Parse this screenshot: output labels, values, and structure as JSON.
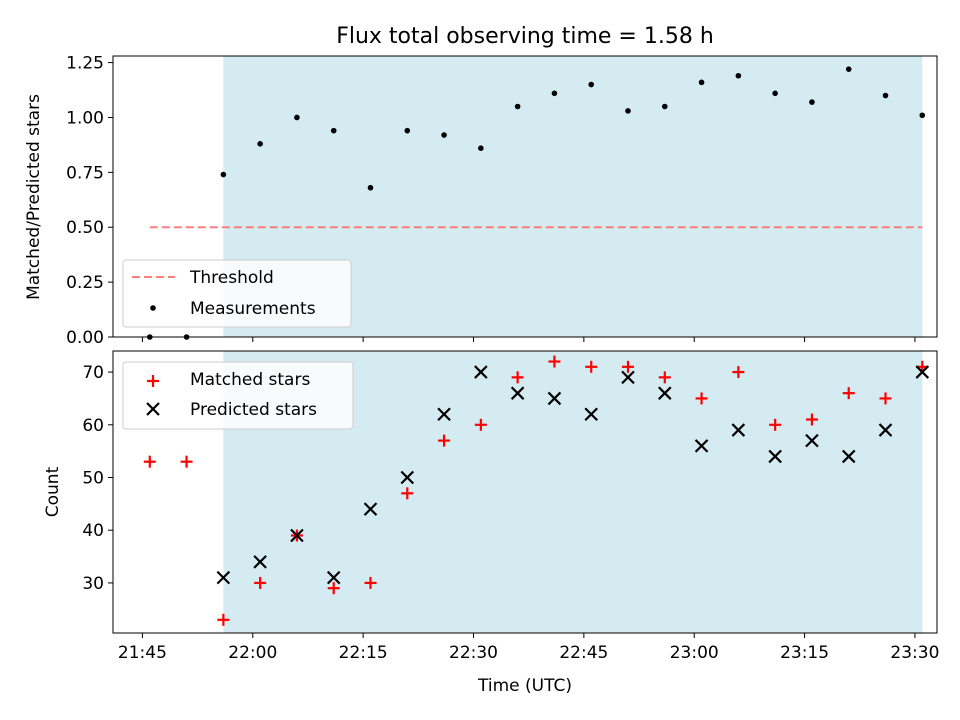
{
  "title": "Flux total observing time = 1.58 h",
  "colors": {
    "shade": "#d4ebf1",
    "threshold": "#ff7f7f",
    "measure": "#000000",
    "matched": "#ff0000",
    "predicted": "#000000"
  },
  "chart_data": [
    {
      "type": "scatter",
      "title": "Flux total observing time = 1.58 h",
      "xlabel": "",
      "ylabel": "Matched/Predicted stars",
      "xlim": [
        "21:41",
        "23:33"
      ],
      "ylim": [
        0,
        1.28
      ],
      "yticks": [
        "0.00",
        "0.25",
        "0.50",
        "0.75",
        "1.00",
        "1.25"
      ],
      "shaded_span": [
        "21:56",
        "23:31"
      ],
      "legend": "lower-left",
      "threshold": {
        "name": "Threshold",
        "y": 0.5,
        "x_range": [
          "21:46",
          "23:31"
        ]
      },
      "series": [
        {
          "name": "Measurements",
          "x": [
            "21:46",
            "21:51",
            "21:56",
            "22:01",
            "22:06",
            "22:11",
            "22:16",
            "22:21",
            "22:26",
            "22:31",
            "22:36",
            "22:41",
            "22:46",
            "22:51",
            "22:56",
            "23:01",
            "23:06",
            "23:11",
            "23:16",
            "23:21",
            "23:26",
            "23:31"
          ],
          "y": [
            0.0,
            0.0,
            0.74,
            0.88,
            1.0,
            0.94,
            0.68,
            0.94,
            0.92,
            0.86,
            1.05,
            1.11,
            1.15,
            1.03,
            1.05,
            1.16,
            1.19,
            1.11,
            1.07,
            1.22,
            1.1,
            1.01
          ]
        }
      ]
    },
    {
      "type": "scatter",
      "xlabel": "Time (UTC)",
      "ylabel": "Count",
      "xlim": [
        "21:41",
        "23:33"
      ],
      "ylim": [
        20.5,
        74
      ],
      "xticks": [
        "21:45",
        "22:00",
        "22:15",
        "22:30",
        "22:45",
        "23:00",
        "23:15",
        "23:30"
      ],
      "yticks": [
        "30",
        "40",
        "50",
        "60",
        "70"
      ],
      "shaded_span": [
        "21:56",
        "23:31"
      ],
      "legend": "top-left",
      "series": [
        {
          "name": "Matched stars",
          "marker": "+",
          "x": [
            "21:46",
            "21:51",
            "21:56",
            "22:01",
            "22:06",
            "22:11",
            "22:16",
            "22:21",
            "22:26",
            "22:31",
            "22:36",
            "22:41",
            "22:46",
            "22:51",
            "22:56",
            "23:01",
            "23:06",
            "23:11",
            "23:16",
            "23:21",
            "23:26",
            "23:31"
          ],
          "y": [
            53,
            53,
            23,
            30,
            39,
            29,
            30,
            47,
            57,
            60,
            69,
            72,
            71,
            71,
            69,
            65,
            70,
            60,
            61,
            66,
            65,
            71
          ]
        },
        {
          "name": "Predicted stars",
          "marker": "x",
          "x": [
            "21:56",
            "22:01",
            "22:06",
            "22:11",
            "22:16",
            "22:21",
            "22:26",
            "22:31",
            "22:36",
            "22:41",
            "22:46",
            "22:51",
            "22:56",
            "23:01",
            "23:06",
            "23:11",
            "23:16",
            "23:21",
            "23:26",
            "23:31"
          ],
          "y": [
            31,
            34,
            39,
            31,
            44,
            50,
            62,
            70,
            66,
            65,
            62,
            69,
            66,
            56,
            59,
            54,
            57,
            54,
            59,
            70
          ]
        }
      ]
    }
  ]
}
